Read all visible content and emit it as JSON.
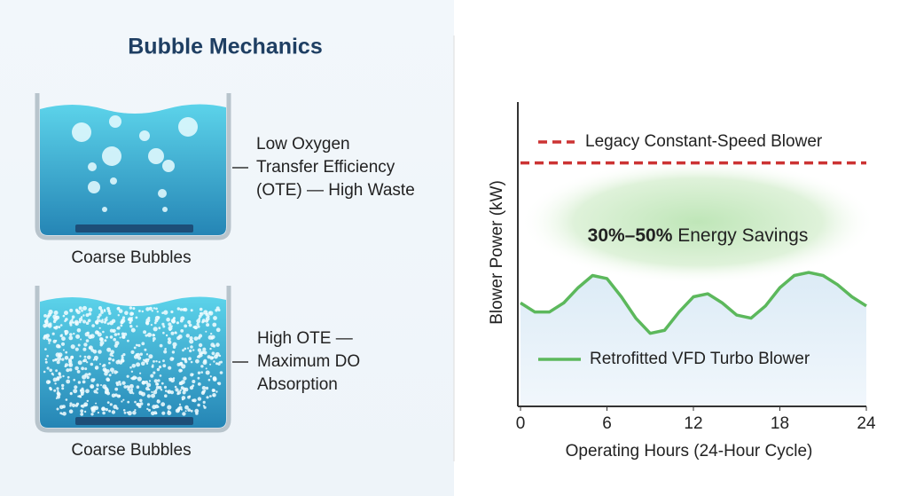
{
  "panel_title": "Bubble Mechanics",
  "panels": [
    {
      "caption": "Coarse Bubbles",
      "note_lines": [
        "Low Oxygen",
        "Transfer Efficiency",
        "(OTE) — High Waste"
      ]
    },
    {
      "caption": "Coarse Bubbles",
      "note_lines": [
        "High OTE —",
        "Maximum DO",
        "Absorption"
      ]
    }
  ],
  "chart_data": {
    "type": "line",
    "x_label": "Operating Hours (24-Hour Cycle)",
    "y_label": "Blower Power (kW)",
    "savings_highlight": "30%–50%",
    "savings_label": "Energy Savings",
    "xlim": [
      0,
      24
    ],
    "xticks": [
      0,
      6,
      12,
      18,
      24
    ],
    "ylim": [
      0,
      100
    ],
    "series": [
      {
        "name": "Legacy Constant-Speed Blower",
        "color": "#cc3333",
        "dashed": true,
        "x": [
          0,
          24
        ],
        "values": [
          80,
          80
        ]
      },
      {
        "name": "Retrofitted VFD Turbo Blower",
        "color": "#5cb85c",
        "dashed": false,
        "x": [
          0,
          1,
          2,
          3,
          4,
          5,
          6,
          7,
          8,
          9,
          10,
          11,
          12,
          13,
          14,
          15,
          16,
          17,
          18,
          19,
          20,
          21,
          22,
          23,
          24
        ],
        "values": [
          34,
          31,
          31,
          34,
          39,
          43,
          42,
          36,
          29,
          24,
          25,
          31,
          36,
          37,
          34,
          30,
          29,
          33,
          39,
          43,
          44,
          43,
          40,
          36,
          33
        ]
      }
    ]
  }
}
